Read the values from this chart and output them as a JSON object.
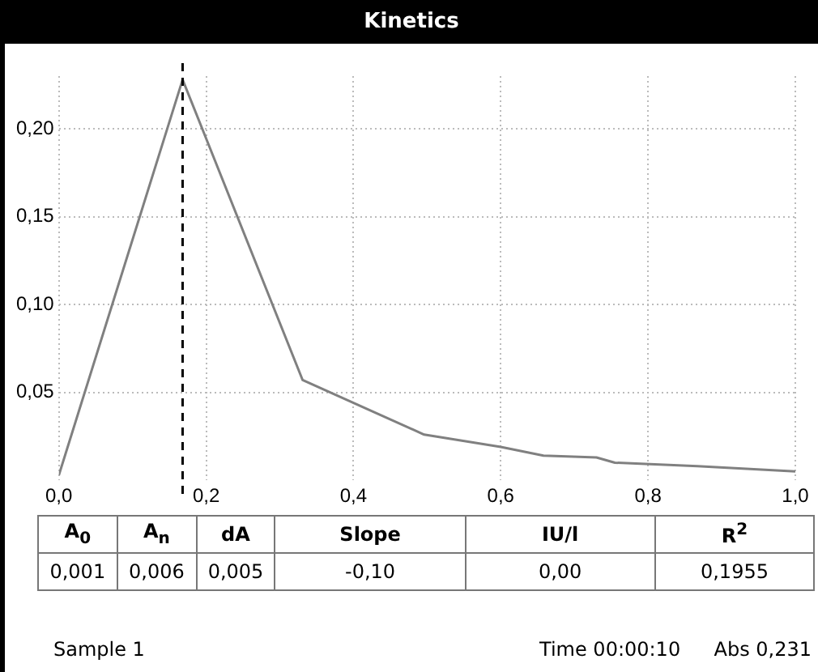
{
  "chart_data": {
    "type": "line",
    "title": "Kinetics",
    "x": [
      0,
      0.168,
      0.331,
      0.496,
      0.6,
      0.658,
      0.73,
      0.755,
      0.867,
      1.0
    ],
    "series": [
      {
        "color": "#808080",
        "values": [
          0.003,
          0.228,
          0.057,
          0.026,
          0.019,
          0.014,
          0.013,
          0.01,
          0.008,
          0.005
        ]
      }
    ],
    "xlim": [
      0,
      1.0
    ],
    "xticks": [
      {
        "value": 0,
        "label": "0,0"
      },
      {
        "value": 0.2,
        "label": "0,2"
      },
      {
        "value": 0.4,
        "label": "0,4"
      },
      {
        "value": 0.6,
        "label": "0,6"
      },
      {
        "value": 0.8,
        "label": "0,8"
      },
      {
        "value": 1.0,
        "label": "1,0"
      }
    ],
    "ylim": [
      0,
      0.23
    ],
    "yticks": [
      {
        "value": 0.05,
        "label": "0,05"
      },
      {
        "value": 0.1,
        "label": "0,10"
      },
      {
        "value": 0.15,
        "label": "0,15"
      },
      {
        "value": 0.2,
        "label": "0,20"
      }
    ],
    "ref_lines": [
      {
        "axis": "x",
        "value": 0.168,
        "color": "#000000",
        "line_style": "dashed"
      }
    ],
    "grid": true,
    "legend": false,
    "marker": "none",
    "line_style": "solid",
    "annotations": [
      "A$_{0}$",
      "A$_{n}$",
      "dA",
      "Slope",
      "IU/l",
      "R$^{2}$",
      "0,001",
      "0,006",
      "0,005",
      "-0,10",
      "0,00",
      "0,1955",
      "Sample  1",
      "Time 00:00:10",
      "Abs 0,231"
    ]
  }
}
